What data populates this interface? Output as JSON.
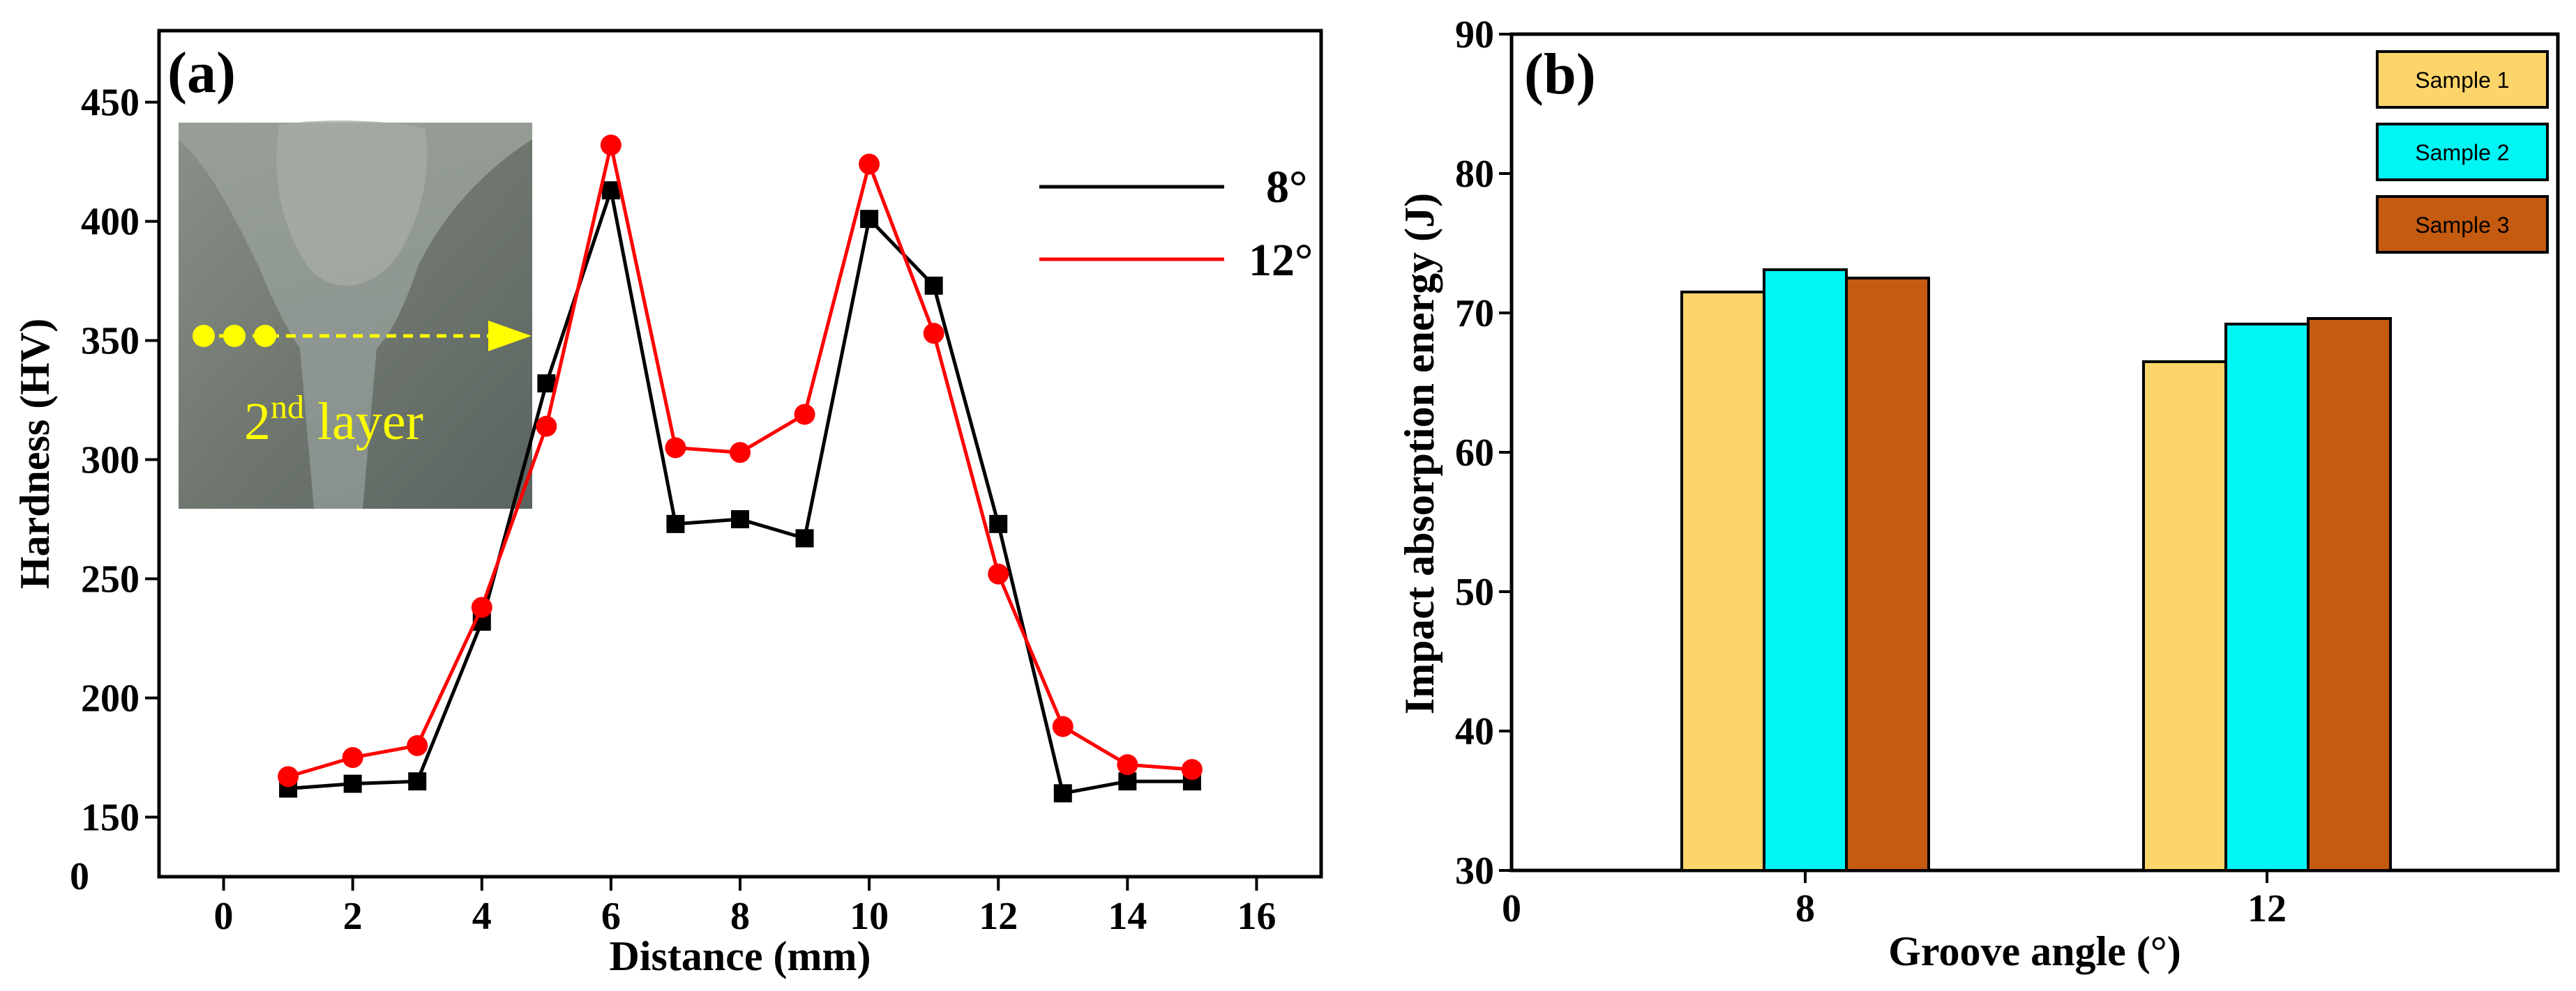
{
  "chart_data": [
    {
      "type": "line",
      "panel_label": "(a)",
      "title": "",
      "xlabel": "Distance (mm)",
      "ylabel": "Hardness (HV)",
      "xlim": [
        -1,
        17
      ],
      "xticks": [
        0,
        2,
        4,
        6,
        8,
        10,
        12,
        14,
        16
      ],
      "xtick_labels": [
        "0",
        "2",
        "4",
        "6",
        "8",
        "10",
        "12",
        "14",
        "16"
      ],
      "ylim": [
        125,
        480
      ],
      "yticks": [
        150,
        200,
        250,
        300,
        350,
        400,
        450
      ],
      "ytick_labels": [
        "150",
        "200",
        "250",
        "300",
        "350",
        "400",
        "450"
      ],
      "y_zero_label": "0",
      "legend_position": "top-right",
      "x": [
        1,
        2,
        3,
        4,
        5,
        6,
        7,
        8,
        9,
        10,
        11,
        12,
        13,
        14,
        15
      ],
      "series": [
        {
          "name": "8°",
          "color": "#000000",
          "marker": "square",
          "values": [
            162,
            164,
            165,
            232,
            332,
            413,
            273,
            275,
            267,
            401,
            373,
            273,
            160,
            165,
            165
          ]
        },
        {
          "name": "12°",
          "color": "#ff0000",
          "marker": "circle",
          "values": [
            167,
            175,
            180,
            238,
            314,
            432,
            305,
            303,
            319,
            424,
            353,
            252,
            188,
            172,
            170
          ]
        }
      ],
      "inset": {
        "label": "2",
        "label_sup": "nd",
        "label_rest": " layer"
      }
    },
    {
      "type": "bar",
      "panel_label": "(b)",
      "title": "",
      "xlabel": "Groove angle (°)",
      "ylabel": "Impact absorption energy (J)",
      "x_origin_label": "0",
      "categories": [
        "8",
        "12"
      ],
      "ylim": [
        30,
        90
      ],
      "yticks": [
        30,
        40,
        50,
        60,
        70,
        80,
        90
      ],
      "ytick_labels": [
        "30",
        "40",
        "50",
        "60",
        "70",
        "80",
        "90"
      ],
      "legend_position": "top-right",
      "series": [
        {
          "name": "Sample 1",
          "color": "#fbd56a",
          "values": [
            71.5,
            66.5
          ]
        },
        {
          "name": "Sample 2",
          "color": "#00f5f5",
          "values": [
            73.1,
            69.2
          ]
        },
        {
          "name": "Sample 3",
          "color": "#c55a11",
          "values": [
            72.5,
            69.6
          ]
        }
      ]
    }
  ]
}
